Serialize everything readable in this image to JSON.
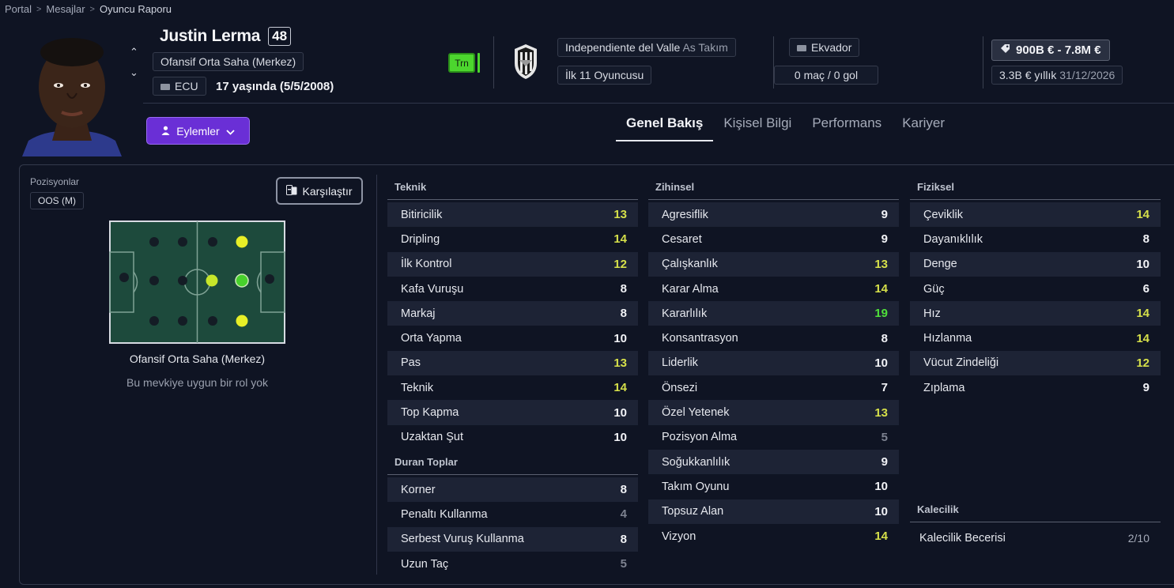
{
  "breadcrumb": [
    "Portal",
    "Mesajlar",
    "Oyuncu Raporu"
  ],
  "player": {
    "name": "Justin Lerma",
    "ability": "48",
    "position_full": "Ofansif Orta Saha (Merkez)",
    "nationality_code": "ECU",
    "age_text": "17 yaşında (5/5/2008)",
    "training_badge": "Trn",
    "club": "Independiente del Valle",
    "squad": "As Takım",
    "squad_status": "İlk 11 Oyuncusu",
    "nation": "Ekvador",
    "caps": "0 maç / 0 gol",
    "value": "900B € - 7.8M €",
    "wage": "3.3B € yıllık",
    "contract_end": "31/12/2026"
  },
  "actions_label": "Eylemler",
  "tabs": [
    {
      "label": "Genel Bakış",
      "active": true
    },
    {
      "label": "Kişisel Bilgi",
      "active": false
    },
    {
      "label": "Performans",
      "active": false
    },
    {
      "label": "Kariyer",
      "active": false
    }
  ],
  "positions": {
    "label": "Pozisyonlar",
    "tag": "OOS (M)",
    "compare_label": "Karşılaştır",
    "pitch_label": "Ofansif Orta Saha (Merkez)",
    "role_note": "Bu mevkiye uygun bir rol yok"
  },
  "sections": {
    "technical": {
      "title": "Teknik",
      "rows": [
        {
          "name": "Bitiricilik",
          "value": "13"
        },
        {
          "name": "Dripling",
          "value": "14"
        },
        {
          "name": "İlk Kontrol",
          "value": "12"
        },
        {
          "name": "Kafa Vuruşu",
          "value": "8"
        },
        {
          "name": "Markaj",
          "value": "8"
        },
        {
          "name": "Orta Yapma",
          "value": "10"
        },
        {
          "name": "Pas",
          "value": "13"
        },
        {
          "name": "Teknik",
          "value": "14"
        },
        {
          "name": "Top Kapma",
          "value": "10"
        },
        {
          "name": "Uzaktan Şut",
          "value": "10"
        }
      ]
    },
    "set_pieces": {
      "title": "Duran Toplar",
      "rows": [
        {
          "name": "Korner",
          "value": "8"
        },
        {
          "name": "Penaltı Kullanma",
          "value": "4"
        },
        {
          "name": "Serbest Vuruş Kullanma",
          "value": "8"
        },
        {
          "name": "Uzun Taç",
          "value": "5"
        }
      ]
    },
    "mental": {
      "title": "Zihinsel",
      "rows": [
        {
          "name": "Agresiflik",
          "value": "9"
        },
        {
          "name": "Cesaret",
          "value": "9"
        },
        {
          "name": "Çalışkanlık",
          "value": "13"
        },
        {
          "name": "Karar Alma",
          "value": "14"
        },
        {
          "name": "Kararlılık",
          "value": "19"
        },
        {
          "name": "Konsantrasyon",
          "value": "8"
        },
        {
          "name": "Liderlik",
          "value": "10"
        },
        {
          "name": "Önsezi",
          "value": "7"
        },
        {
          "name": "Özel Yetenek",
          "value": "13"
        },
        {
          "name": "Pozisyon Alma",
          "value": "5"
        },
        {
          "name": "Soğukkanlılık",
          "value": "9"
        },
        {
          "name": "Takım Oyunu",
          "value": "10"
        },
        {
          "name": "Topsuz Alan",
          "value": "10"
        },
        {
          "name": "Vizyon",
          "value": "14"
        }
      ]
    },
    "physical": {
      "title": "Fiziksel",
      "rows": [
        {
          "name": "Çeviklik",
          "value": "14"
        },
        {
          "name": "Dayanıklılık",
          "value": "8"
        },
        {
          "name": "Denge",
          "value": "10"
        },
        {
          "name": "Güç",
          "value": "6"
        },
        {
          "name": "Hız",
          "value": "14"
        },
        {
          "name": "Hızlanma",
          "value": "14"
        },
        {
          "name": "Vücut Zindeliği",
          "value": "12"
        },
        {
          "name": "Zıplama",
          "value": "9"
        }
      ]
    },
    "goalkeeping": {
      "title": "Kalecilik",
      "rows": [
        {
          "name": "Kalecilik Becerisi",
          "value": "2/10"
        }
      ]
    }
  },
  "colors": {
    "low": "#7d8290",
    "normal": "#f2f3f7",
    "good": "#d6e04a",
    "excellent": "#4fe03a",
    "accent": "#6a2fd6"
  }
}
